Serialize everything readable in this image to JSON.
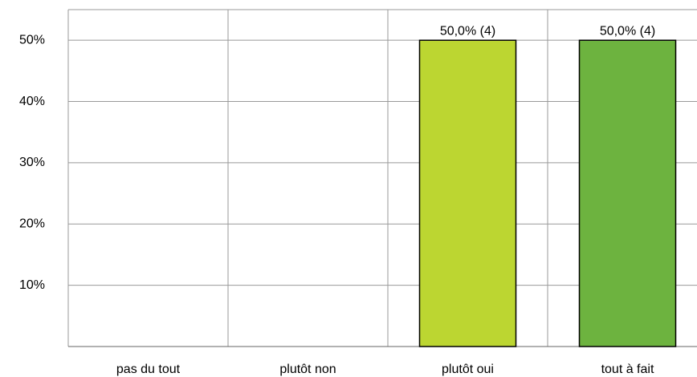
{
  "chart_data": {
    "type": "bar",
    "categories": [
      "pas du tout",
      "plutôt non",
      "plutôt oui",
      "tout à fait"
    ],
    "values": [
      0,
      0,
      50,
      50
    ],
    "value_labels": [
      null,
      null,
      "50,0% (4)",
      "50,0% (4)"
    ],
    "colors": [
      "#bcd631",
      "#8bc53f",
      "#bcd631",
      "#6db33f"
    ],
    "ylim": [
      0,
      55
    ],
    "yticks": [
      {
        "value": 10,
        "label": "10%"
      },
      {
        "value": 20,
        "label": "20%"
      },
      {
        "value": 30,
        "label": "30%"
      },
      {
        "value": 40,
        "label": "40%"
      },
      {
        "value": 50,
        "label": "50%"
      }
    ],
    "grid": true
  }
}
